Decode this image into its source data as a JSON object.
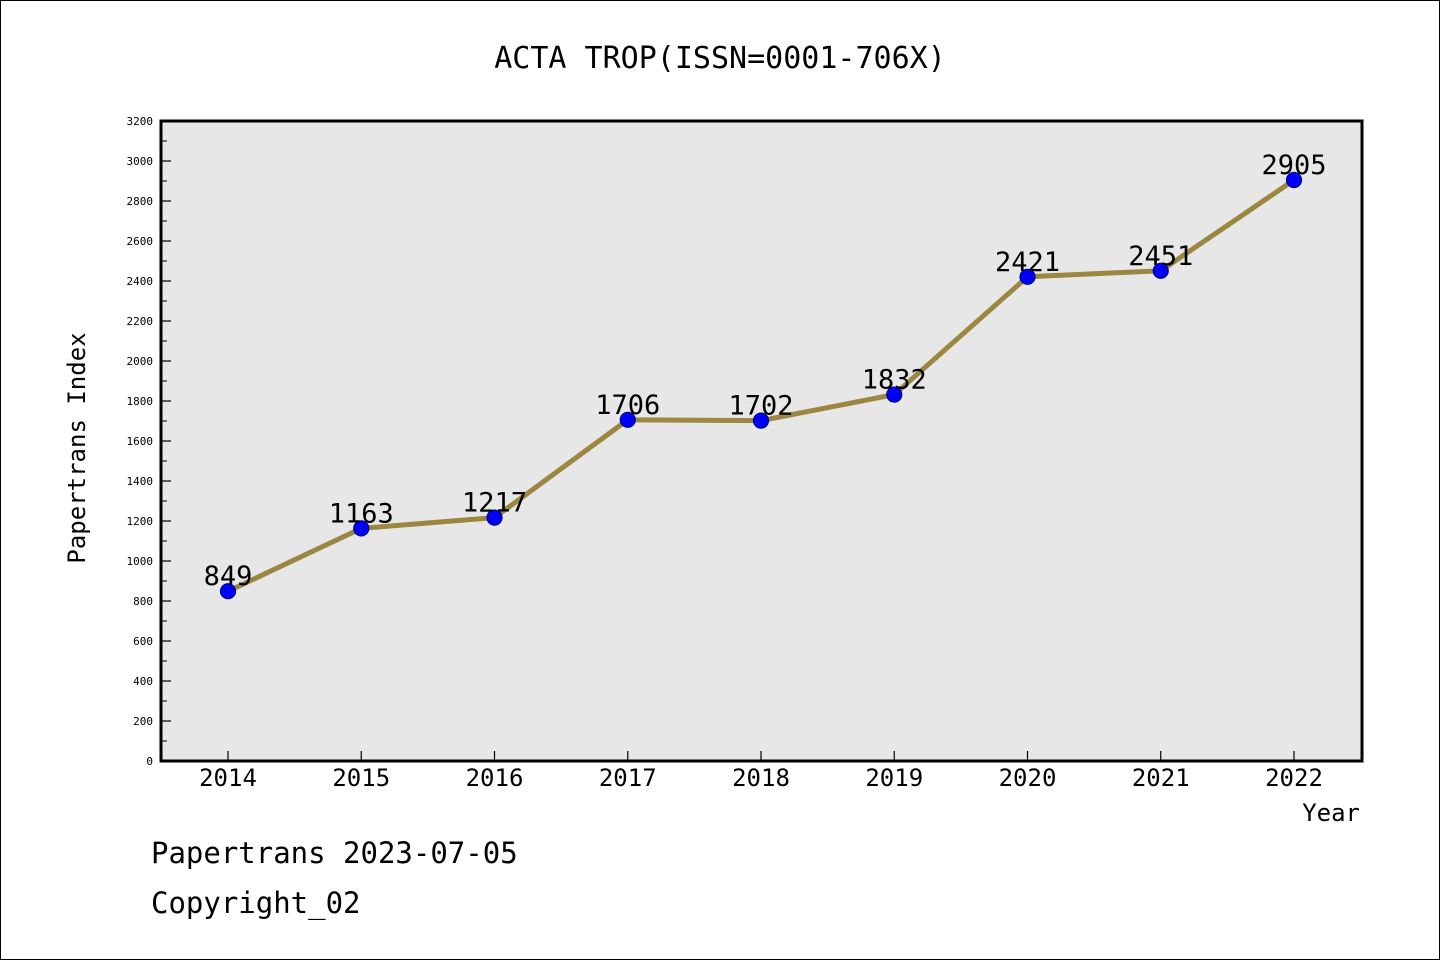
{
  "chart_data": {
    "type": "line",
    "title": "ACTA TROP(ISSN=0001-706X)",
    "xlabel": "Year",
    "ylabel": "Papertrans Index",
    "categories": [
      "2014",
      "2015",
      "2016",
      "2017",
      "2018",
      "2019",
      "2020",
      "2021",
      "2022"
    ],
    "series": [
      {
        "values": [
          849,
          1163,
          1217,
          1706,
          1702,
          1832,
          2421,
          2451,
          2905
        ],
        "data_labels": [
          "849",
          "1163",
          "1217",
          "1706",
          "1702",
          "1832",
          "2421",
          "2451",
          "2905"
        ]
      }
    ],
    "ylim": [
      0,
      3200
    ],
    "y_ticks": [
      "0",
      "200",
      "400",
      "600",
      "800",
      "1000",
      "1200",
      "1400",
      "1600",
      "1800",
      "2000",
      "2200",
      "2400",
      "2600",
      "2800",
      "3000",
      "3200"
    ],
    "grid": false,
    "legend": "none",
    "colors": {
      "plot_background": "#e7e7e7",
      "line": "#9b8741",
      "marker_fill": "#0000ff",
      "marker_edge": "#00008b",
      "axis": "#000000"
    }
  },
  "footer": {
    "stamp": "Papertrans 2023-07-05",
    "copyright": "Copyright_02"
  }
}
